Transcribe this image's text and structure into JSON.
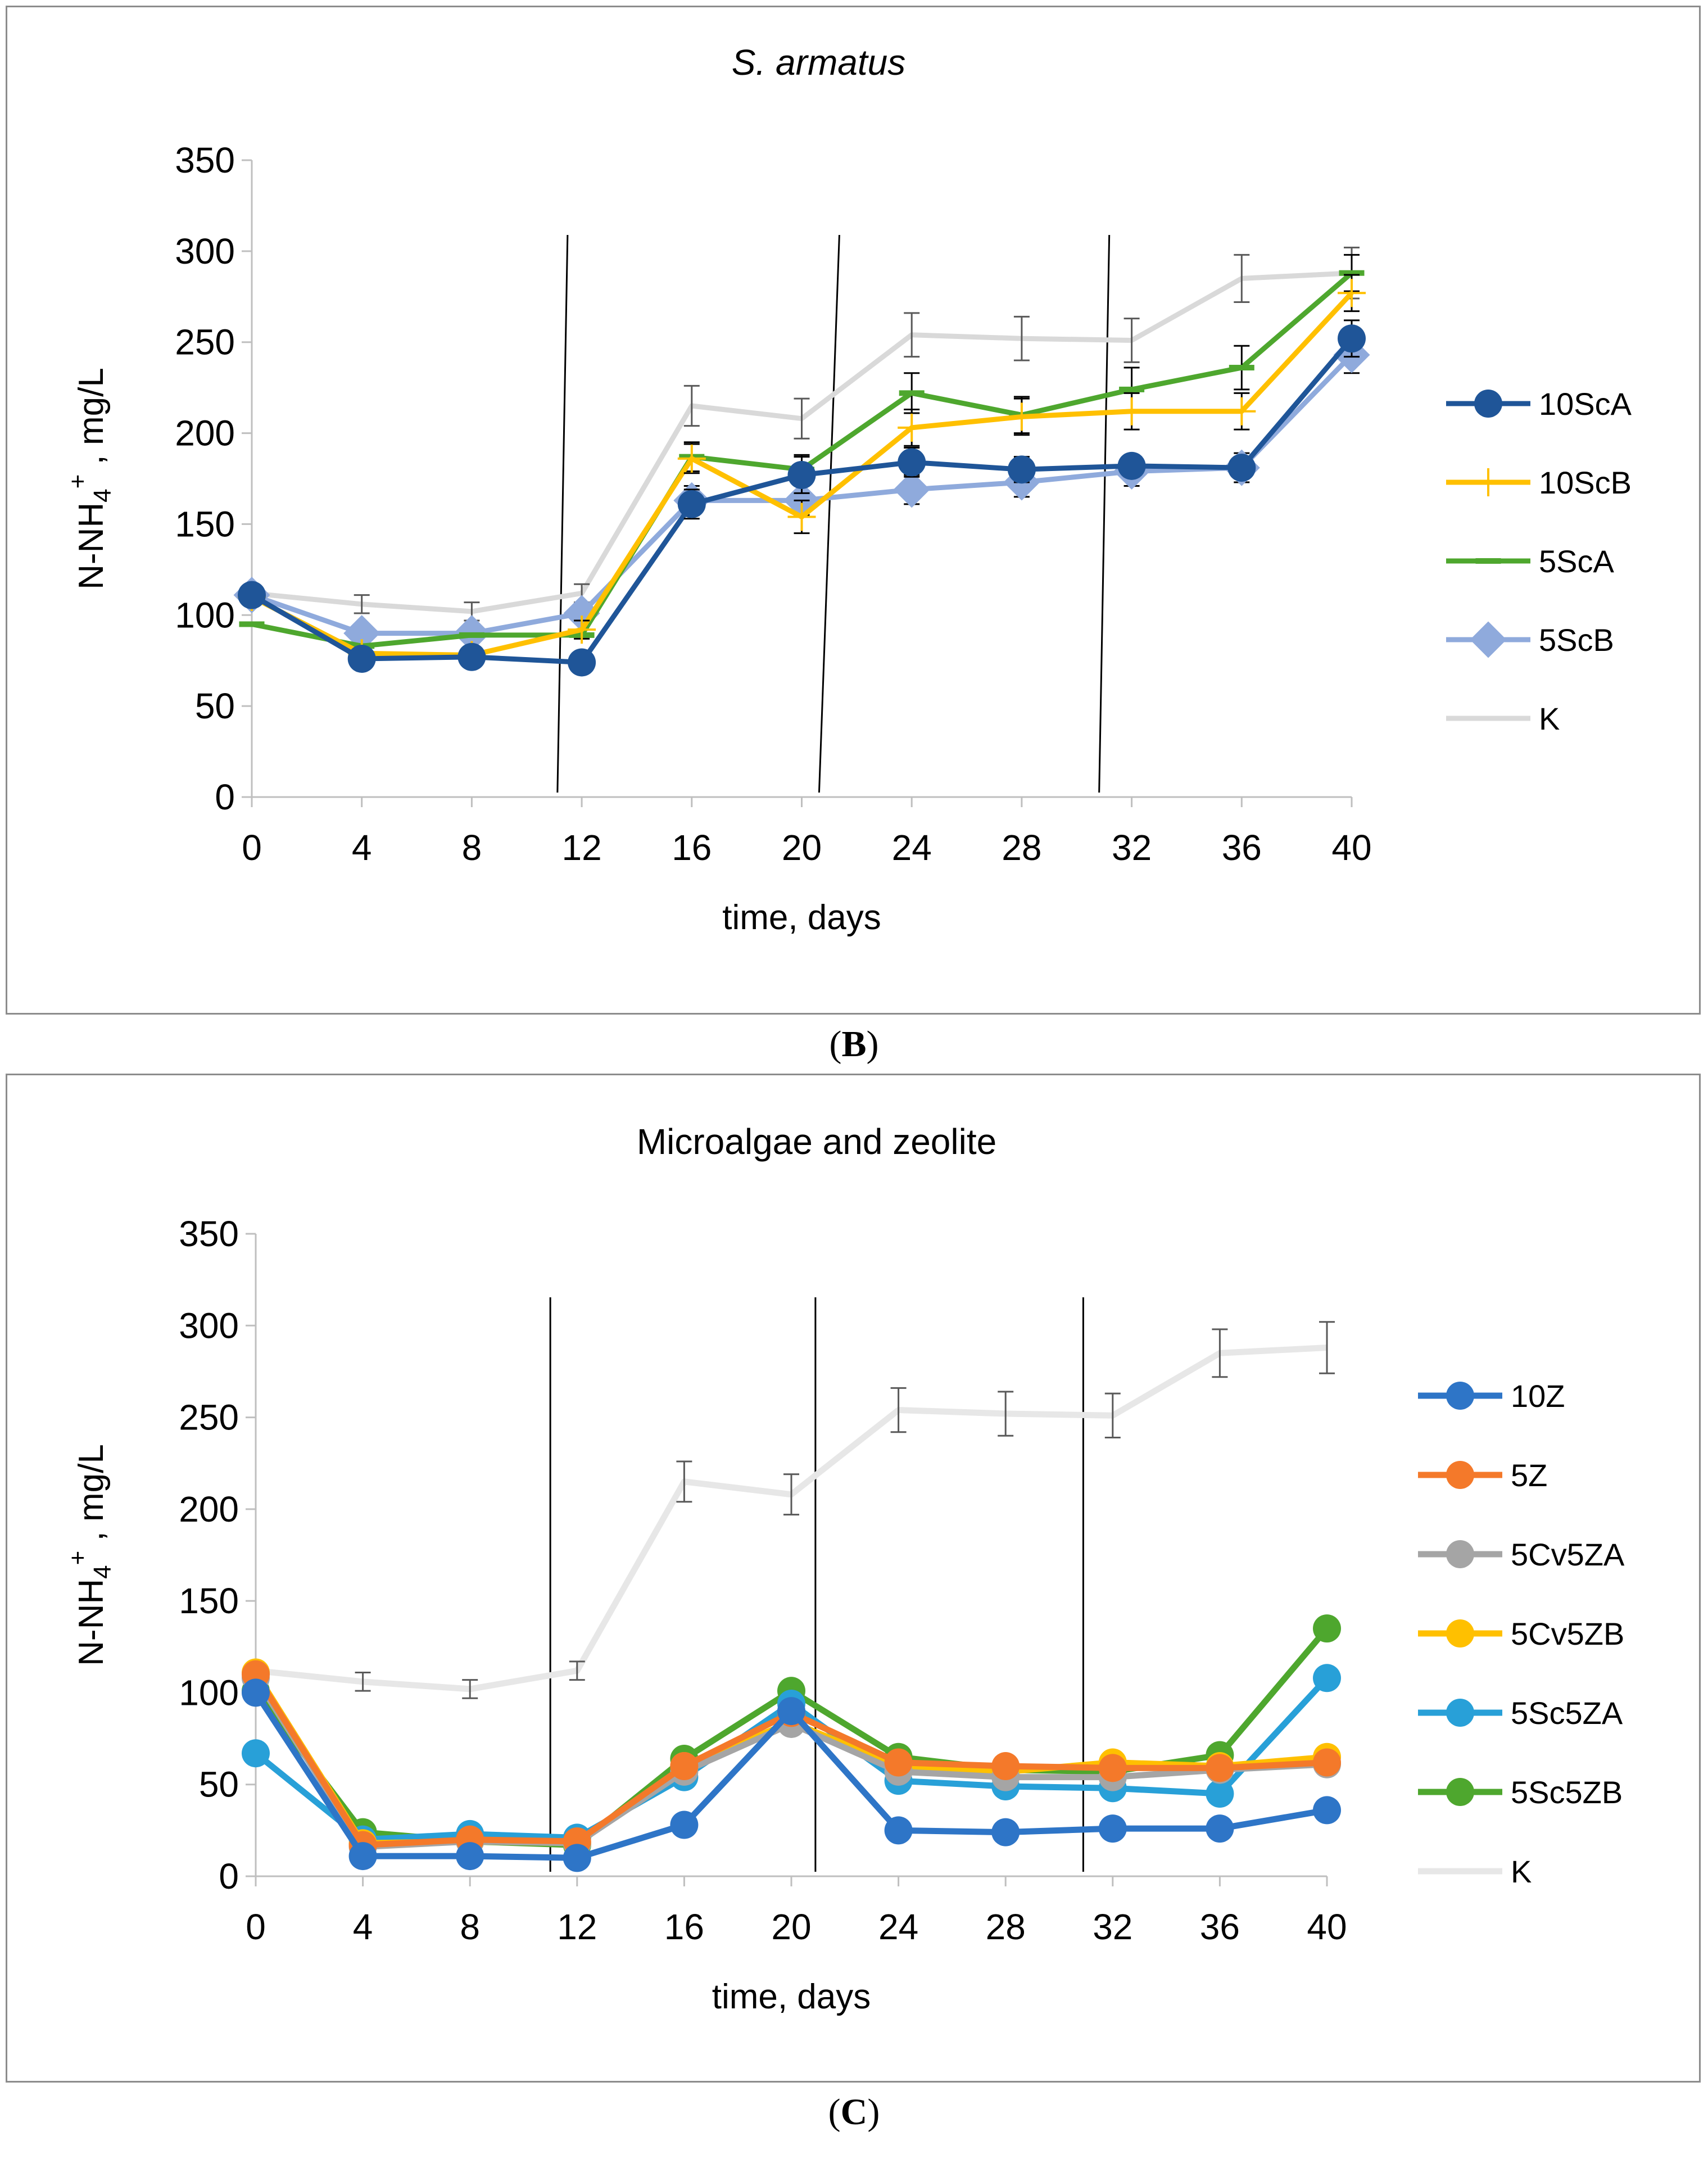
{
  "panels": [
    {
      "id": "B",
      "caption_letter": "B",
      "chart_data": {
        "type": "line",
        "title": "S. armatus",
        "title_italic": true,
        "xlabel": "time, days",
        "ylabel": "N-NH4+ , mg/L",
        "ylabel_main": "N-NH",
        "ylabel_sub": "4",
        "ylabel_sup": "+",
        "ylabel_tail": " , mg/L",
        "x": [
          0,
          4,
          8,
          12,
          16,
          20,
          24,
          28,
          32,
          36,
          40
        ],
        "xlim": [
          0,
          40
        ],
        "ylim": [
          0,
          350
        ],
        "yticks": [
          0,
          50,
          100,
          150,
          200,
          250,
          300,
          350
        ],
        "vlines_x": [
          11.3,
          21.0,
          31.0
        ],
        "legend_position": "right",
        "series": [
          {
            "name": "10ScA",
            "color": "#1f5598",
            "marker": "circle",
            "values": [
              111,
              76,
              77,
              74,
              161,
              177,
              184,
              180,
              182,
              181,
              252
            ],
            "err": [
              0,
              0,
              0,
              0,
              8,
              10,
              8,
              7,
              6,
              6,
              10
            ]
          },
          {
            "name": "10ScB",
            "color": "#ffc000",
            "marker": "plus",
            "values": [
              110,
              79,
              78,
              92,
              186,
              154,
              203,
              209,
              212,
              212,
              277
            ],
            "err": [
              0,
              0,
              0,
              5,
              8,
              9,
              10,
              10,
              10,
              10,
              10
            ]
          },
          {
            "name": "5ScA",
            "color": "#4ea72e",
            "marker": "dash",
            "values": [
              95,
              83,
              89,
              89,
              187,
              180,
              222,
              210,
              224,
              236,
              288
            ],
            "err": [
              0,
              0,
              0,
              0,
              8,
              8,
              11,
              10,
              12,
              12,
              10
            ]
          },
          {
            "name": "5ScB",
            "color": "#8faadc",
            "marker": "diamond",
            "values": [
              111,
              90,
              90,
              101,
              163,
              163,
              169,
              173,
              179,
              181,
              243
            ],
            "err": [
              0,
              0,
              0,
              0,
              8,
              8,
              8,
              8,
              8,
              8,
              10
            ]
          },
          {
            "name": "K",
            "color": "#d9d9d9",
            "marker": "none",
            "values": [
              112,
              106,
              102,
              112,
              215,
              208,
              254,
              252,
              251,
              285,
              288
            ],
            "err": [
              0,
              5,
              5,
              5,
              11,
              11,
              12,
              12,
              12,
              13,
              14
            ]
          }
        ]
      }
    },
    {
      "id": "C",
      "caption_letter": "C",
      "chart_data": {
        "type": "line",
        "title": "Microalgae and zeolite",
        "title_italic": false,
        "xlabel": "time, days",
        "ylabel": "N-NH4+ , mg/L",
        "ylabel_main": "N-NH",
        "ylabel_sub": "4",
        "ylabel_sup": "+",
        "ylabel_tail": " , mg/L",
        "x": [
          0,
          4,
          8,
          12,
          16,
          20,
          24,
          28,
          32,
          36,
          40
        ],
        "xlim": [
          0,
          40
        ],
        "ylim": [
          0,
          350
        ],
        "yticks": [
          0,
          50,
          100,
          150,
          200,
          250,
          300,
          350
        ],
        "vlines_x": [
          11.0,
          20.9,
          30.9
        ],
        "legend_position": "right",
        "series": [
          {
            "name": "10Z",
            "color": "#2e75c7",
            "marker": "circle",
            "values": [
              100,
              11,
              11,
              10,
              28,
              90,
              25,
              24,
              26,
              26,
              36
            ],
            "err": []
          },
          {
            "name": "5Z",
            "color": "#f4792a",
            "marker": "circle",
            "values": [
              110,
              17,
              20,
              19,
              60,
              89,
              62,
              60,
              59,
              59,
              62
            ],
            "err": []
          },
          {
            "name": "5Cv5ZA",
            "color": "#a5a5a5",
            "marker": "circle",
            "values": [
              108,
              16,
              19,
              18,
              57,
              83,
              57,
              54,
              54,
              58,
              61
            ],
            "err": []
          },
          {
            "name": "5Cv5ZB",
            "color": "#ffc000",
            "marker": "circle",
            "values": [
              111,
              18,
              19,
              18,
              60,
              84,
              60,
              57,
              62,
              60,
              65
            ],
            "err": []
          },
          {
            "name": "5Sc5ZA",
            "color": "#28a0d8",
            "marker": "circle",
            "values": [
              67,
              20,
              23,
              21,
              54,
              94,
              52,
              49,
              48,
              45,
              108
            ],
            "err": []
          },
          {
            "name": "5Sc5ZB",
            "color": "#4ea72e",
            "marker": "circle",
            "values": [
              101,
              24,
              19,
              17,
              64,
              101,
              65,
              58,
              57,
              66,
              135
            ],
            "err": []
          },
          {
            "name": "K",
            "color": "#e7e7e7",
            "marker": "none",
            "values": [
              112,
              106,
              102,
              112,
              215,
              208,
              254,
              252,
              251,
              285,
              288
            ],
            "err": [
              0,
              5,
              5,
              5,
              11,
              11,
              12,
              12,
              12,
              13,
              14
            ]
          }
        ]
      }
    }
  ]
}
